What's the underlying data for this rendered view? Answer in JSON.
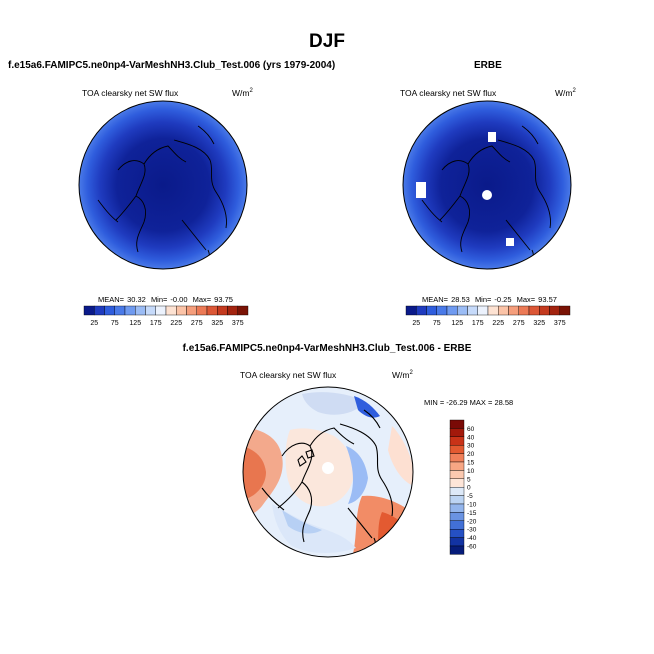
{
  "figure": {
    "title": "DJF"
  },
  "panels": [
    {
      "title": "f.e15a6.FAMIPC5.ne0np4-VarMeshNH3.Club_Test.006 (yrs 1979-2004)",
      "variable": "TOA clearsky net SW flux",
      "units_base": "W/m",
      "units_exp": "2",
      "stats": {
        "mean_label": "MEAN=",
        "mean": "30.32",
        "min_label": "Min=",
        "min": "-0.00",
        "max_label": "Max=",
        "max": "93.75"
      },
      "colorbar": {
        "tick_labels": [
          "25",
          "75",
          "125",
          "175",
          "225",
          "275",
          "325",
          "375"
        ],
        "colors": [
          "#0a1a8a",
          "#1f3bbf",
          "#2f5ddd",
          "#4a7ae8",
          "#6f9af0",
          "#9bbcf5",
          "#c6dafa",
          "#ecf2fd",
          "#fde2d2",
          "#fbc3a7",
          "#f59e7c",
          "#ec7a56",
          "#dc5736",
          "#c43a1f",
          "#a3240f",
          "#7a1305"
        ]
      }
    },
    {
      "title": "ERBE",
      "variable": "TOA clearsky net SW flux",
      "units_base": "W/m",
      "units_exp": "2",
      "stats": {
        "mean_label": "MEAN=",
        "mean": "28.53",
        "min_label": "Min=",
        "min": "-0.25",
        "max_label": "Max=",
        "max": "93.57"
      },
      "colorbar": {
        "tick_labels": [
          "25",
          "75",
          "125",
          "175",
          "225",
          "275",
          "325",
          "375"
        ],
        "colors": [
          "#0a1a8a",
          "#1f3bbf",
          "#2f5ddd",
          "#4a7ae8",
          "#6f9af0",
          "#9bbcf5",
          "#c6dafa",
          "#ecf2fd",
          "#fde2d2",
          "#fbc3a7",
          "#f59e7c",
          "#ec7a56",
          "#dc5736",
          "#c43a1f",
          "#a3240f",
          "#7a1305"
        ]
      }
    },
    {
      "title": "f.e15a6.FAMIPC5.ne0np4-VarMeshNH3.Club_Test.006 - ERBE",
      "variable": "TOA clearsky net SW flux",
      "units_base": "W/m",
      "units_exp": "2",
      "stats_text": "MIN = -26.29  MAX =  28.58",
      "colorbar": {
        "tick_labels": [
          "60",
          "40",
          "30",
          "20",
          "15",
          "10",
          "5",
          "0",
          "-5",
          "-10",
          "-15",
          "-20",
          "-30",
          "-40",
          "-60"
        ],
        "colors": [
          "#7a0a06",
          "#a3190b",
          "#c93318",
          "#e35a31",
          "#f0805a",
          "#f7a684",
          "#fbc9b0",
          "#fde5d8",
          "#dde9f8",
          "#bcd4f3",
          "#93b5ec",
          "#6a93e2",
          "#4270d6",
          "#2550c4",
          "#1233a3",
          "#061c7a"
        ]
      }
    }
  ],
  "chart_data": [
    {
      "type": "heatmap",
      "projection": "north-polar-stereographic",
      "title": "f.e15a6.FAMIPC5.ne0np4-VarMeshNH3.Club_Test.006 (yrs 1979-2004)",
      "variable": "TOA clearsky net SW flux",
      "units": "W/m2",
      "mean": 30.32,
      "min": -0.0,
      "max": 93.75,
      "colorbar_levels": [
        25,
        50,
        75,
        100,
        125,
        150,
        175,
        200,
        225,
        250,
        275,
        300,
        325,
        350,
        375
      ]
    },
    {
      "type": "heatmap",
      "projection": "north-polar-stereographic",
      "title": "ERBE",
      "variable": "TOA clearsky net SW flux",
      "units": "W/m2",
      "mean": 28.53,
      "min": -0.25,
      "max": 93.57,
      "colorbar_levels": [
        25,
        50,
        75,
        100,
        125,
        150,
        175,
        200,
        225,
        250,
        275,
        300,
        325,
        350,
        375
      ]
    },
    {
      "type": "heatmap",
      "projection": "north-polar-stereographic",
      "title": "f.e15a6.FAMIPC5.ne0np4-VarMeshNH3.Club_Test.006 - ERBE",
      "variable": "TOA clearsky net SW flux",
      "units": "W/m2",
      "min": -26.29,
      "max": 28.58,
      "colorbar_levels": [
        -60,
        -40,
        -30,
        -20,
        -15,
        -10,
        -5,
        0,
        5,
        10,
        15,
        20,
        30,
        40,
        60
      ]
    }
  ]
}
